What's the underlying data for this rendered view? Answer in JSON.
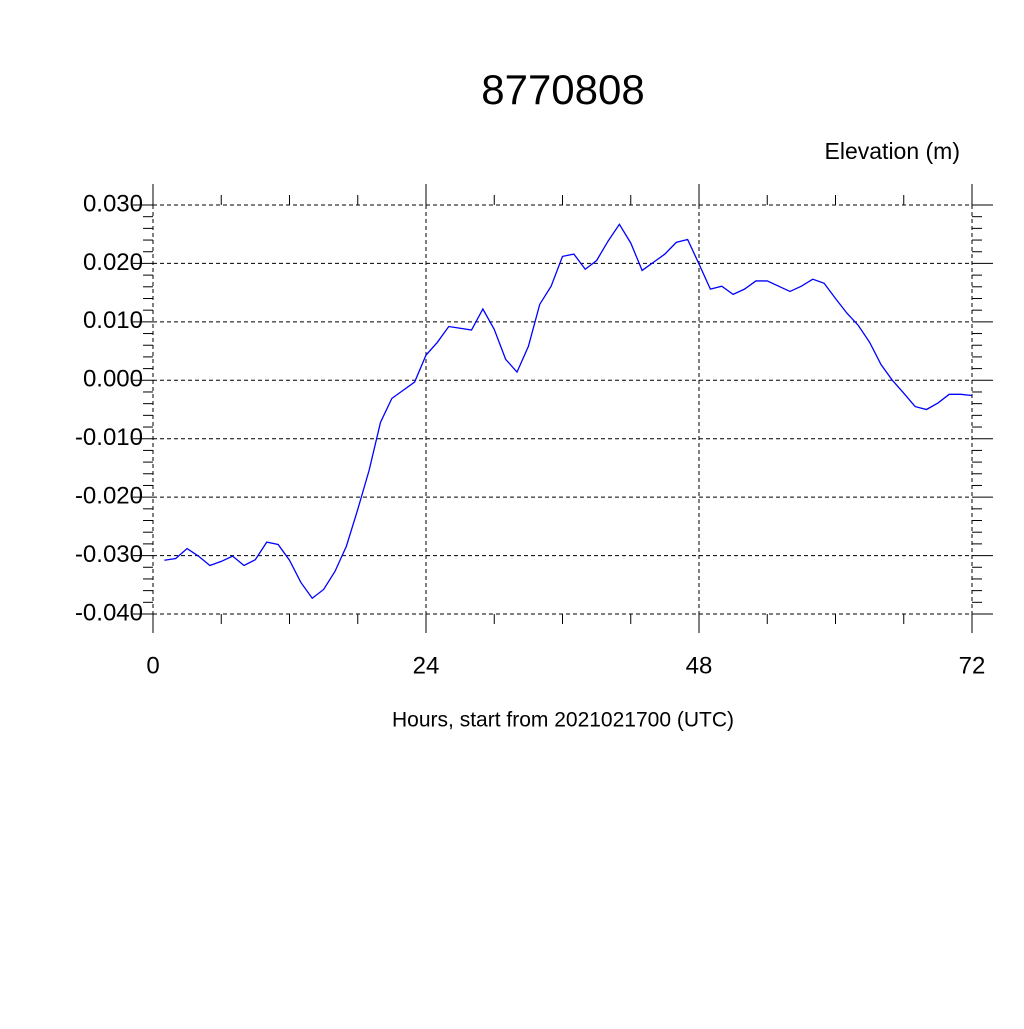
{
  "chart_data": {
    "type": "line",
    "title": "8770808",
    "ylabel": "Elevation (m)",
    "xlabel": "Hours, start from 2021021700 (UTC)",
    "x": [
      1,
      2,
      3,
      4,
      5,
      6,
      7,
      8,
      9,
      10,
      11,
      12,
      13,
      14,
      15,
      16,
      17,
      18,
      19,
      20,
      21,
      22,
      23,
      24,
      25,
      26,
      27,
      28,
      29,
      30,
      31,
      32,
      33,
      34,
      35,
      36,
      37,
      38,
      39,
      40,
      41,
      42,
      43,
      44,
      45,
      46,
      47,
      48,
      49,
      50,
      51,
      52,
      53,
      54,
      55,
      56,
      57,
      58,
      59,
      60,
      61,
      62,
      63,
      64,
      65,
      66,
      67,
      68,
      69,
      70,
      71,
      72
    ],
    "series": [
      {
        "color": "#0000ff",
        "values": [
          -0.0308,
          -0.0305,
          -0.0288,
          -0.0301,
          -0.0317,
          -0.031,
          -0.0301,
          -0.0317,
          -0.0307,
          -0.0277,
          -0.0281,
          -0.0308,
          -0.0346,
          -0.0373,
          -0.0358,
          -0.0327,
          -0.0284,
          -0.0221,
          -0.0154,
          -0.0072,
          -0.0031,
          -0.0017,
          -0.0003,
          0.0043,
          0.0065,
          0.0092,
          0.0089,
          0.0086,
          0.0122,
          0.0087,
          0.0036,
          0.0014,
          0.0058,
          0.013,
          0.0161,
          0.0212,
          0.0216,
          0.019,
          0.0205,
          0.0238,
          0.0267,
          0.0235,
          0.0188,
          0.0202,
          0.0216,
          0.0236,
          0.0241,
          0.0199,
          0.0156,
          0.0161,
          0.0147,
          0.0156,
          0.017,
          0.017,
          0.0161,
          0.0152,
          0.0161,
          0.0173,
          0.0166,
          0.014,
          0.0115,
          0.0094,
          0.0065,
          0.0027,
          0.0,
          -0.0022,
          -0.0045,
          -0.005,
          -0.0039,
          -0.0024,
          -0.0024,
          -0.0026
        ]
      }
    ],
    "xlim": [
      0,
      72
    ],
    "xticks": [
      0,
      24,
      48,
      72
    ],
    "xminorticks": [
      6,
      12,
      18,
      30,
      36,
      42,
      54,
      60,
      66
    ],
    "ylim": [
      -0.04,
      0.03
    ],
    "yticks": [
      {
        "value": -0.04,
        "label": "-0.040"
      },
      {
        "value": -0.03,
        "label": "-0.030"
      },
      {
        "value": -0.02,
        "label": "-0.020"
      },
      {
        "value": -0.01,
        "label": "-0.010"
      },
      {
        "value": 0,
        "label": "0.000"
      },
      {
        "value": 0.01,
        "label": "0.010"
      },
      {
        "value": 0.02,
        "label": "0.020"
      },
      {
        "value": 0.03,
        "label": "0.030"
      }
    ],
    "yminorticks": [
      -0.038,
      -0.036,
      -0.034,
      -0.032,
      -0.028,
      -0.026,
      -0.024,
      -0.022,
      -0.018,
      -0.016,
      -0.014,
      -0.012,
      -0.008,
      -0.006,
      -0.004,
      -0.002,
      0.002,
      0.004,
      0.006,
      0.008,
      0.012,
      0.014,
      0.016,
      0.018,
      0.022,
      0.024,
      0.026,
      0.028
    ],
    "grid": true
  }
}
